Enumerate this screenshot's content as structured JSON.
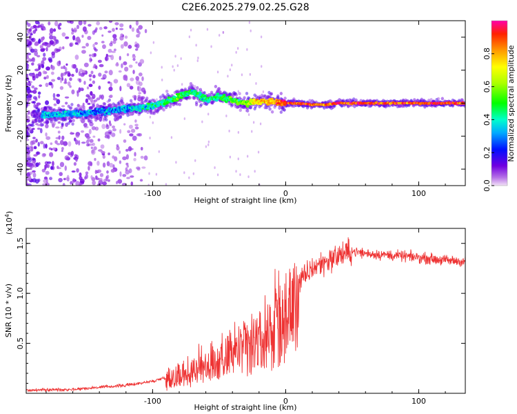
{
  "page": {
    "title": "C2E6.2025.279.02.25.G28"
  },
  "chart_data": [
    {
      "type": "heatmap",
      "name": "spectrogram",
      "title": "C2E6.2025.279.02.25.G28",
      "xlabel": "Height of straight line (km)",
      "ylabel": "Frequency (Hz)",
      "xlim": [
        -195,
        135
      ],
      "ylim": [
        -50,
        50
      ],
      "xticks": [
        -100,
        0,
        100
      ],
      "xtick_labels": [
        "-100",
        "0",
        "100"
      ],
      "yticks": [
        -40,
        -20,
        0,
        20,
        40
      ],
      "ytick_labels": [
        "-40",
        "-20",
        "0",
        "20",
        "40"
      ],
      "colorbar": {
        "label": "Normalized spectral amplitude",
        "range": [
          0,
          1
        ],
        "ticks": [
          0,
          0.2,
          0.4,
          0.6,
          0.8
        ],
        "tick_labels": [
          "0.0",
          "0.2",
          "0.4",
          "0.6",
          "0.8"
        ]
      },
      "ridge": {
        "x": [
          -175,
          -150,
          -125,
          -100,
          -80,
          -70,
          -60,
          -50,
          -40,
          -30,
          -20,
          -10,
          0,
          10,
          20,
          30,
          40,
          60,
          80,
          100,
          120,
          135
        ],
        "freq": [
          -7,
          -6,
          -4,
          -2,
          4,
          7,
          2,
          4,
          2,
          0,
          1,
          1,
          0,
          0,
          -1,
          -1,
          0,
          0,
          0,
          0,
          0,
          0
        ],
        "amplitude": [
          0.35,
          0.3,
          0.3,
          0.4,
          0.5,
          0.45,
          0.4,
          0.45,
          0.5,
          0.6,
          0.75,
          0.8,
          0.9,
          0.9,
          0.85,
          0.85,
          0.9,
          0.9,
          0.85,
          0.9,
          0.9,
          0.9
        ]
      },
      "noise_region_x": [
        -195,
        -105
      ]
    },
    {
      "type": "line",
      "name": "snr",
      "xlabel": "Height of straight line (km)",
      "ylabel": "SNR (10 * v/v)",
      "y_multiplier_label": "(x10",
      "y_multiplier_exp": "4",
      "y_multiplier_close": ")",
      "xlim": [
        -195,
        135
      ],
      "ylim": [
        0,
        1.65
      ],
      "xticks": [
        -100,
        0,
        100
      ],
      "xtick_labels": [
        "-100",
        "0",
        "100"
      ],
      "yticks": [
        0.5,
        1.0,
        1.5
      ],
      "ytick_labels": [
        "0.5",
        "1.0",
        "1.5"
      ],
      "color": "#ee3333",
      "trend": {
        "x": [
          -195,
          -160,
          -140,
          -120,
          -100,
          -80,
          -60,
          -40,
          -20,
          -10,
          0,
          10,
          20,
          30,
          40,
          50,
          60,
          80,
          100,
          120,
          135
        ],
        "snr": [
          0.03,
          0.04,
          0.06,
          0.08,
          0.12,
          0.2,
          0.32,
          0.45,
          0.58,
          0.75,
          0.95,
          1.1,
          1.25,
          1.32,
          1.38,
          1.42,
          1.4,
          1.38,
          1.36,
          1.33,
          1.32
        ]
      }
    }
  ]
}
